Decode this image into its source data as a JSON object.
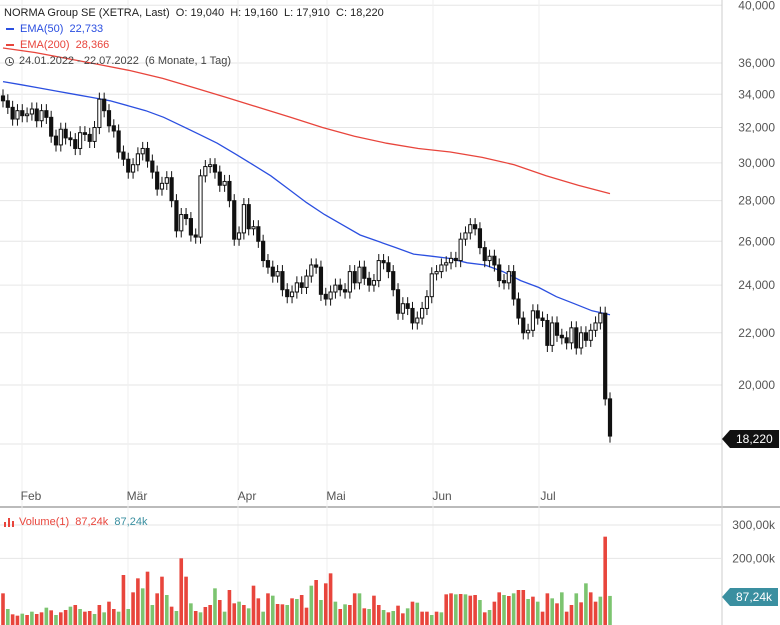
{
  "legend": {
    "instrument": "NORMA Group SE (XETRA, Last)",
    "ohlc": {
      "O": "19,040",
      "H": "19,160",
      "L": "17,910",
      "C": "18,220"
    },
    "ema50_label": "EMA(50)",
    "ema50_value": "22,733",
    "ema200_label": "EMA(200)",
    "ema200_value": "28,366",
    "range": "24.01.2022 - 22.07.2022",
    "period": "(6 Monate, 1 Tag)"
  },
  "volume_legend": {
    "label": "Volume(1)",
    "value_red": "87,24k",
    "value_teal": "87,24k"
  },
  "last_price_badge": "18,220",
  "volume_badge": "87,24k",
  "colors": {
    "ema50": "#2b4fe0",
    "ema200": "#e8453c",
    "vol_up": "#7cc470",
    "vol_down": "#e8453c",
    "candle": "#111111"
  },
  "chart_data": [
    {
      "type": "candlestick",
      "y_scale": "log",
      "ylim": [
        18.0,
        40.0
      ],
      "y_ticks": [
        "20,000",
        "22,000",
        "24,000",
        "26,000",
        "28,000",
        "30,000",
        "32,000",
        "34,000",
        "36,000",
        "40,000"
      ],
      "y_tick_values": [
        20,
        22,
        24,
        26,
        28,
        30,
        32,
        34,
        36,
        40
      ],
      "x_ticks": [
        "Feb",
        "Mär",
        "Apr",
        "Mai",
        "Jun",
        "Jul"
      ],
      "candles_close": [
        33.6,
        33.2,
        32.5,
        33.0,
        32.7,
        32.8,
        33.1,
        32.4,
        33.0,
        32.6,
        31.5,
        31.0,
        31.9,
        31.4,
        31.3,
        30.8,
        31.7,
        31.6,
        31.2,
        32.0,
        33.7,
        33.0,
        32.1,
        31.8,
        30.6,
        30.2,
        29.5,
        29.9,
        30.5,
        30.8,
        30.1,
        29.5,
        28.6,
        28.9,
        29.2,
        28.0,
        26.5,
        27.3,
        27.1,
        26.3,
        26.2,
        29.3,
        29.8,
        29.9,
        29.5,
        28.8,
        29.0,
        28.0,
        26.1,
        26.4,
        27.8,
        26.6,
        26.7,
        26.0,
        25.1,
        24.8,
        24.4,
        24.6,
        23.8,
        23.5,
        23.7,
        24.1,
        23.9,
        24.4,
        24.9,
        24.8,
        23.6,
        23.4,
        23.7,
        24.0,
        23.8,
        23.7,
        24.6,
        24.1,
        24.8,
        24.3,
        24.0,
        24.2,
        25.1,
        25.0,
        24.6,
        23.8,
        22.8,
        23.2,
        23.0,
        22.4,
        22.6,
        23.0,
        23.5,
        24.5,
        24.6,
        24.9,
        25.0,
        25.2,
        25.1,
        26.1,
        26.4,
        26.8,
        26.6,
        25.7,
        25.1,
        25.3,
        24.9,
        24.2,
        24.1,
        24.6,
        23.4,
        22.6,
        22.0,
        22.1,
        22.9,
        22.6,
        22.5,
        21.5,
        22.4,
        21.9,
        21.8,
        21.6,
        22.2,
        21.4,
        22.0,
        21.7,
        22.1,
        22.4,
        22.8,
        19.5,
        18.22
      ],
      "ema50": [
        34.8,
        34.6,
        34.4,
        34.2,
        34.0,
        33.8,
        33.6,
        33.3,
        33.0,
        32.6,
        32.1,
        31.6,
        31.1,
        30.5,
        29.9,
        29.3,
        28.6,
        27.9,
        27.3,
        26.8,
        26.3,
        26.0,
        25.7,
        25.4,
        25.3,
        25.2,
        25.0,
        24.9,
        24.6,
        24.2,
        23.9,
        23.5,
        23.2,
        22.9,
        22.733
      ],
      "ema200": [
        37.0,
        36.7,
        36.3,
        35.9,
        35.5,
        35.0,
        34.4,
        33.8,
        33.2,
        32.6,
        32.0,
        31.5,
        31.1,
        30.8,
        30.6,
        30.3,
        29.9,
        29.3,
        28.8,
        28.366
      ]
    },
    {
      "type": "bar",
      "name": "Volume(1)",
      "y_ticks": [
        "200,00k",
        "300,00k"
      ],
      "y_tick_values": [
        200,
        300
      ],
      "unit": "k",
      "volumes": [
        95,
        48,
        32,
        28,
        34,
        30,
        40,
        33,
        38,
        52,
        44,
        30,
        38,
        45,
        55,
        60,
        48,
        40,
        42,
        33,
        60,
        38,
        70,
        48,
        40,
        150,
        48,
        98,
        140,
        110,
        160,
        60,
        95,
        145,
        90,
        55,
        42,
        200,
        145,
        65,
        42,
        38,
        54,
        60,
        110,
        75,
        40,
        105,
        65,
        70,
        60,
        50,
        118,
        80,
        40,
        95,
        88,
        63,
        62,
        60,
        80,
        78,
        90,
        52,
        118,
        135,
        75,
        125,
        155,
        70,
        48,
        62,
        60,
        95,
        95,
        50,
        48,
        88,
        60,
        45,
        38,
        42,
        58,
        35,
        50,
        70,
        67,
        40,
        40,
        30,
        40,
        38,
        92,
        95,
        92,
        93,
        92,
        88,
        90,
        75,
        38,
        45,
        70,
        98,
        90,
        87,
        95,
        105,
        105,
        78,
        85,
        70,
        40,
        95,
        80,
        65,
        98,
        40,
        60,
        95,
        68,
        125,
        98,
        70,
        85,
        265,
        87.24
      ]
    }
  ]
}
